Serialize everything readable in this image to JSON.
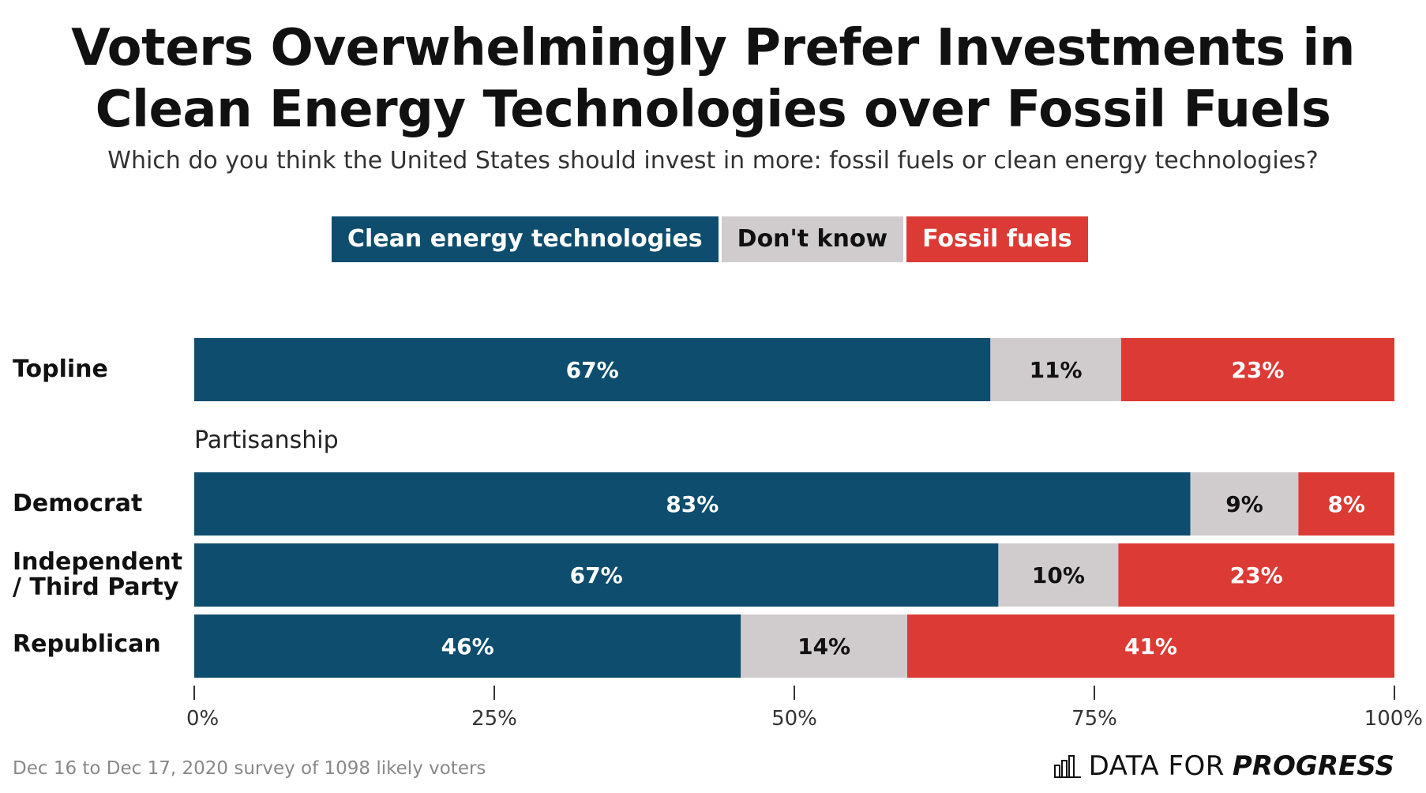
{
  "title": "Voters Overwhelmingly Prefer Investments in Clean Energy Technologies over Fossil Fuels",
  "subtitle": "Which do you think the United States should invest in more: fossil fuels or clean energy technologies?",
  "group_label": "Partisanship",
  "footnote": "Dec 16 to Dec 17, 2020 survey of 1098 likely voters",
  "brand": {
    "main": "DATA FOR",
    "emphasis": "PROGRESS",
    "icon": "bar-chart-icon"
  },
  "colors": {
    "clean": "#0e4d6d",
    "dont_know": "#d0ccce",
    "fossil": "#dc3a34"
  },
  "chart_data": {
    "type": "bar",
    "orientation": "horizontal",
    "stacked": true,
    "title": "Voters Overwhelmingly Prefer Investments in Clean Energy Technologies over Fossil Fuels",
    "subtitle": "Which do you think the United States should invest in more: fossil fuels or clean energy technologies?",
    "categories": [
      "Topline",
      "Democrat",
      "Independent / Third Party",
      "Republican"
    ],
    "category_labels": [
      [
        "Topline"
      ],
      [
        "Democrat"
      ],
      [
        "Independent",
        "/ Third Party"
      ],
      [
        "Republican"
      ]
    ],
    "series": [
      {
        "name": "Clean energy technologies",
        "values": [
          67,
          83,
          67,
          46
        ],
        "labels": [
          "67%",
          "83%",
          "67%",
          "46%"
        ]
      },
      {
        "name": "Don't know",
        "values": [
          11,
          9,
          10,
          14
        ],
        "labels": [
          "11%",
          "9%",
          "10%",
          "14%"
        ]
      },
      {
        "name": "Fossil fuels",
        "values": [
          23,
          8,
          23,
          41
        ],
        "labels": [
          "23%",
          "8%",
          "23%",
          "41%"
        ]
      }
    ],
    "xlim": [
      0,
      100
    ],
    "x_ticks": [
      0,
      25,
      50,
      75,
      100
    ],
    "x_tick_labels": [
      "0%",
      "25%",
      "50%",
      "75%",
      "100%"
    ],
    "legend_position": "top",
    "grid": false
  }
}
